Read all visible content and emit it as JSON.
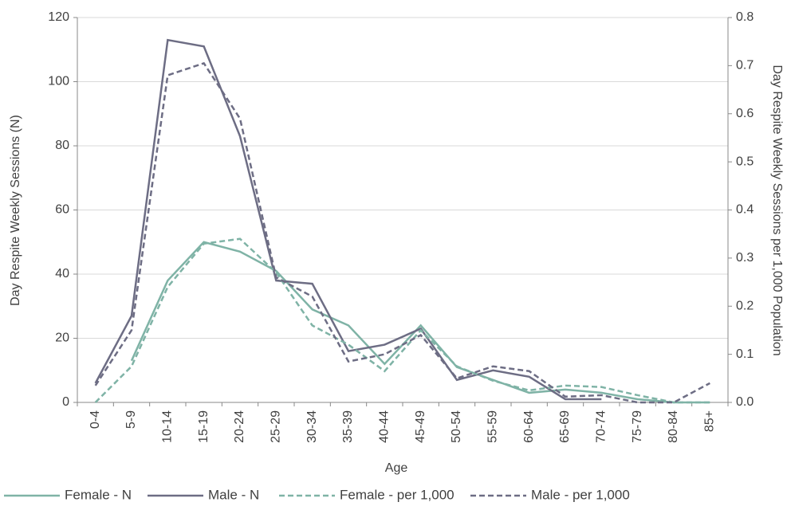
{
  "chart_data": {
    "type": "line",
    "x_label": "Age",
    "y_label": "Day Respite Weekly Sessions (N)",
    "y2_label": "Day Respite Weekly Sessions per 1,000 Population",
    "categories": [
      "0-4",
      "5-9",
      "10-14",
      "15-19",
      "20-24",
      "25-29",
      "30-34",
      "35-39",
      "40-44",
      "45-49",
      "50-54",
      "55-59",
      "60-64",
      "65-69",
      "70-74",
      "75-79",
      "80-84",
      "85+"
    ],
    "ylim": [
      0,
      120
    ],
    "yticks": [
      0,
      20,
      40,
      60,
      80,
      100,
      120
    ],
    "y2lim": [
      0,
      0.8
    ],
    "y2ticks": [
      {
        "value": 0,
        "label": "0.0"
      },
      0.1,
      0.2,
      0.3,
      0.4,
      0.5,
      0.6,
      0.7,
      0.8
    ],
    "grid": true,
    "legend": "bottom",
    "series": [
      {
        "name": "Female - N",
        "color": "#7fb3a6",
        "dash": false,
        "values": [
          null,
          13,
          38,
          50,
          47,
          41,
          29,
          24,
          12,
          24,
          11,
          7,
          3,
          4,
          3,
          1,
          0,
          0
        ]
      },
      {
        "name": "Male - N",
        "color": "#6d6d84",
        "dash": false,
        "values": [
          6,
          27,
          113,
          111,
          83,
          38,
          37,
          16,
          18,
          23,
          7,
          10,
          8,
          1,
          1,
          null,
          null,
          null
        ]
      },
      {
        "name": "Female - per 1,000",
        "color": "#7fb3a6",
        "dash": true,
        "axis": "y2",
        "values": [
          0,
          0.075,
          0.24,
          0.33,
          0.34,
          0.27,
          0.16,
          0.12,
          0.065,
          0.15,
          0.075,
          0.045,
          0.025,
          0.035,
          0.032,
          0.015,
          0,
          0
        ]
      },
      {
        "name": "Male - per 1,000",
        "color": "#6d6d84",
        "dash": true,
        "axis": "y2",
        "values": [
          0.035,
          0.15,
          0.68,
          0.705,
          0.59,
          0.26,
          0.22,
          0.085,
          0.1,
          0.14,
          0.05,
          0.075,
          0.065,
          0.012,
          0.015,
          0,
          0,
          0.04
        ]
      }
    ]
  }
}
